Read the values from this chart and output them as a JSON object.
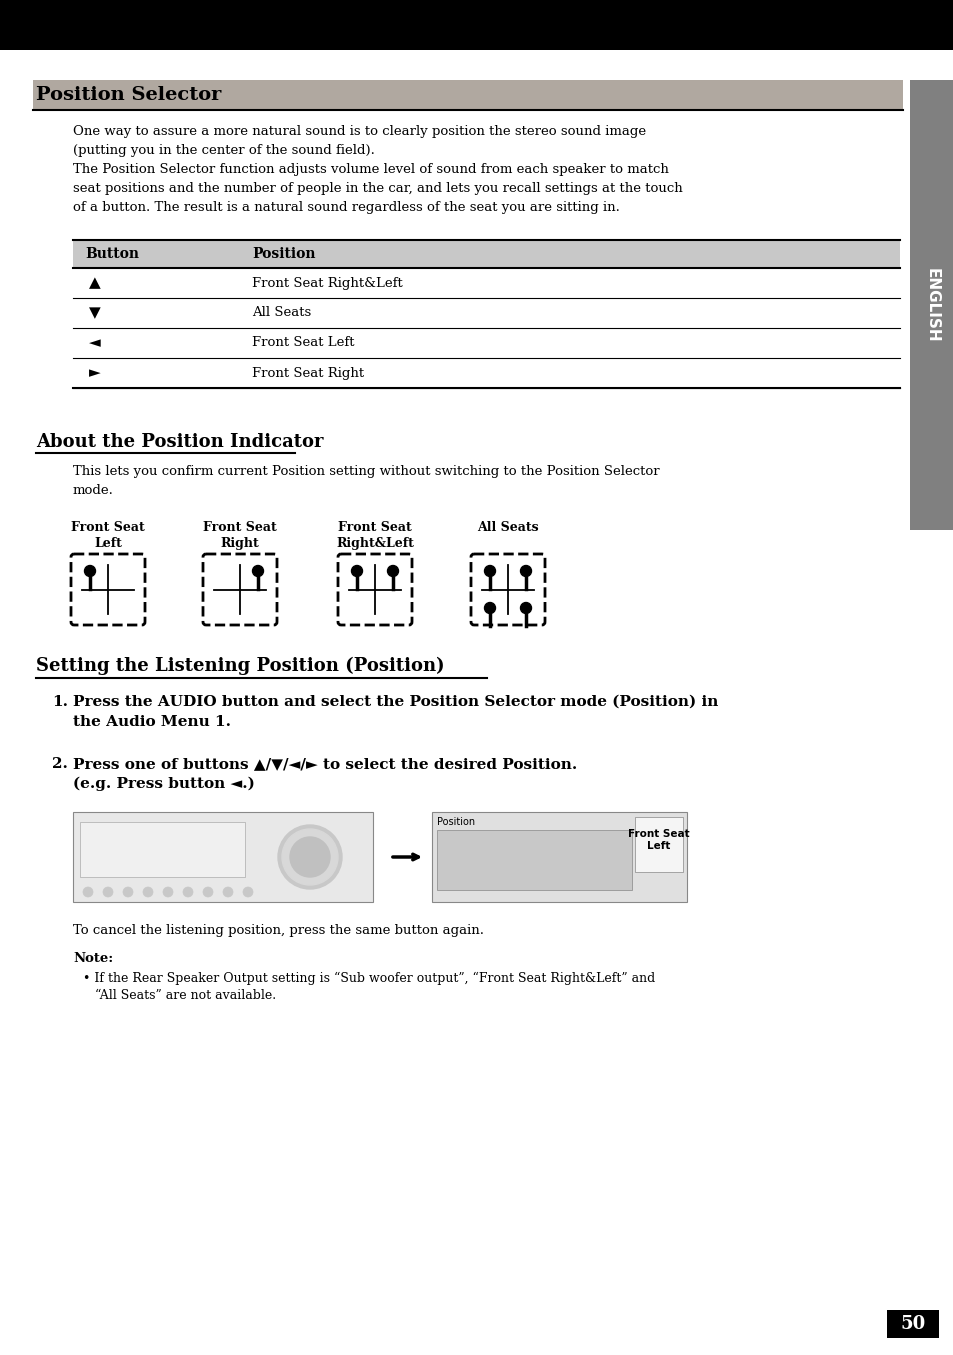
{
  "page_num": "50",
  "bg_color": "#ffffff",
  "section1_title": "Position Selector",
  "section1_body_lines": [
    "One way to assure a more natural sound is to clearly position the stereo sound image",
    "(putting you in the center of the sound field).",
    "The Position Selector function adjusts volume level of sound from each speaker to match",
    "seat positions and the number of people in the car, and lets you recall settings at the touch",
    "of a button. The result is a natural sound regardless of the seat you are sitting in."
  ],
  "table_header": [
    "Button",
    "Position"
  ],
  "table_rows": [
    [
      "▲",
      "Front Seat Right&Left"
    ],
    [
      "▼",
      "All Seats"
    ],
    [
      "◄",
      "Front Seat Left"
    ],
    [
      "►",
      "Front Seat Right"
    ]
  ],
  "section2_title": "About the Position Indicator",
  "section2_body_lines": [
    "This lets you confirm current Position setting without switching to the Position Selector",
    "mode."
  ],
  "indicator_labels": [
    "Front Seat\nLeft",
    "Front Seat\nRight",
    "Front Seat\nRight&Left",
    "All Seats"
  ],
  "section3_title": "Setting the Listening Position (Position)",
  "step1_lines": [
    "Press the AUDIO button and select the Position Selector mode (Position) in",
    "the Audio Menu 1."
  ],
  "step2_lines": [
    "Press one of buttons ▲/▼/◄/► to select the desired Position.",
    "(e.g. Press button ◄.)"
  ],
  "cancel_text": "To cancel the listening position, press the same button again.",
  "note_title": "Note:",
  "note_lines": [
    "• If the Rear Speaker Output setting is “Sub woofer output”, “Front Seat Right&Left” and",
    "   “All Seats” are not available."
  ]
}
